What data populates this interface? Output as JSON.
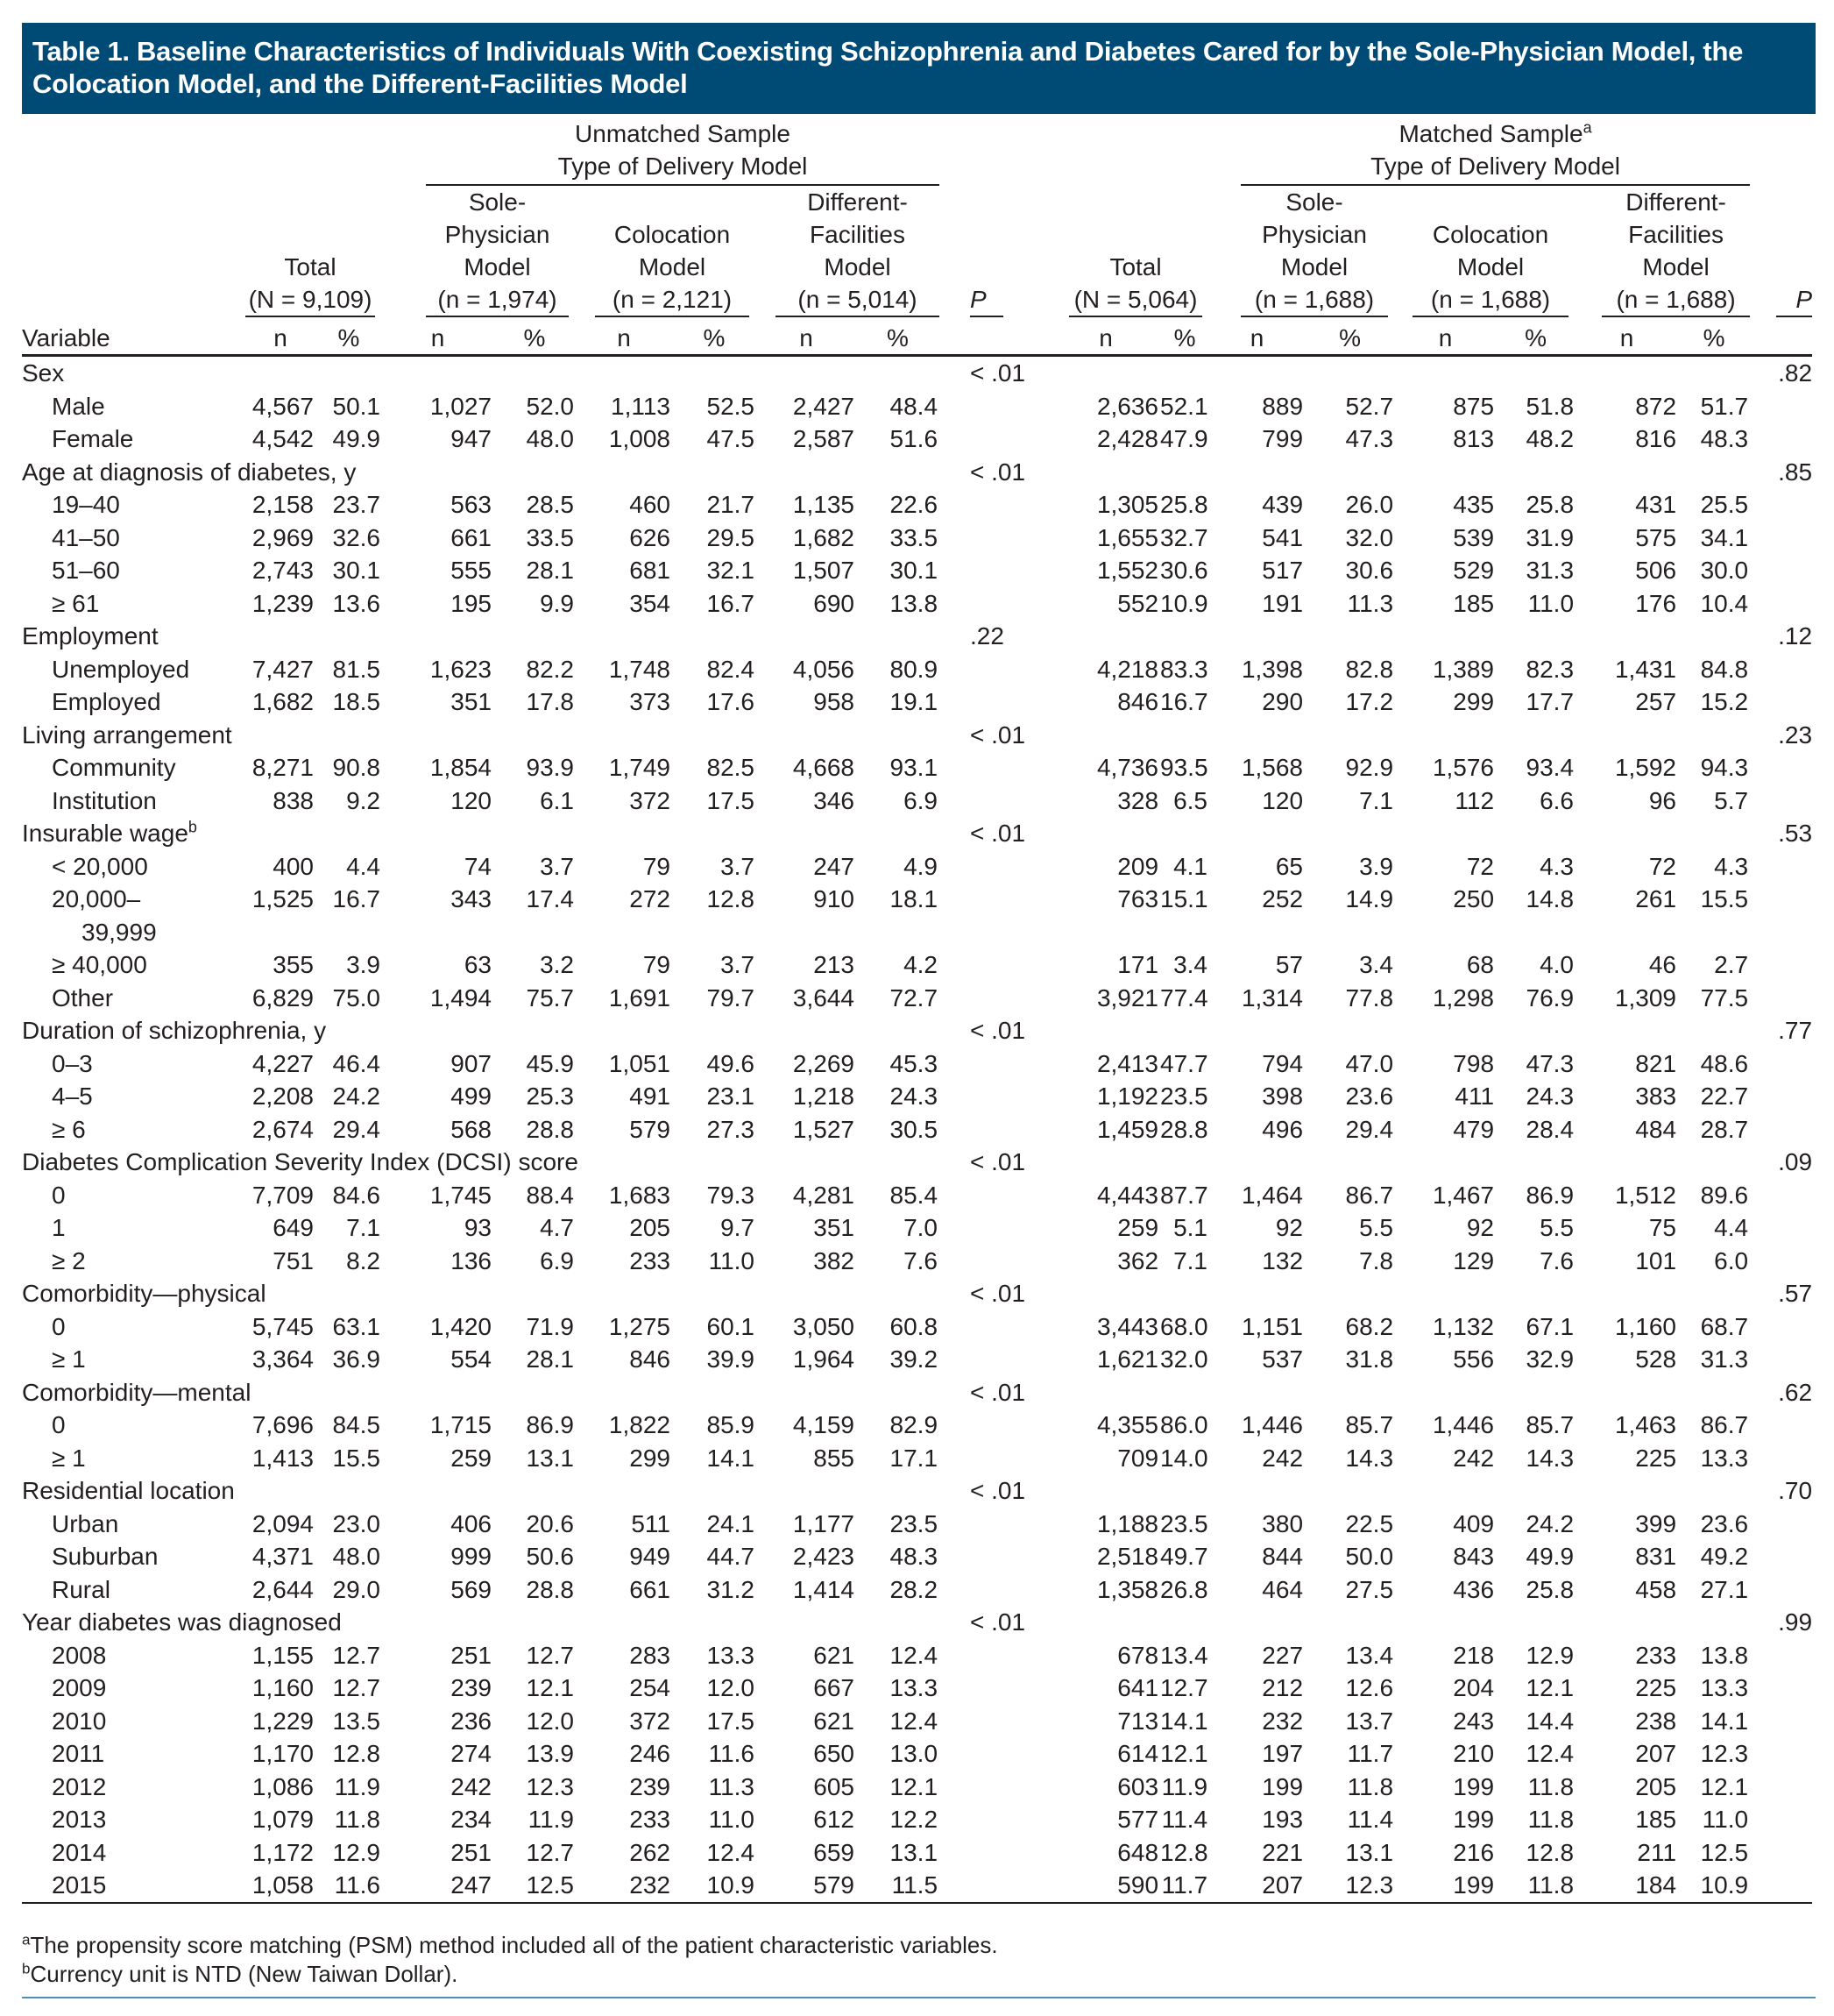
{
  "title": "Table 1. Baseline Characteristics of Individuals With Coexisting Schizophrenia and Diabetes Cared for by the Sole-Physician Model, the Colocation Model, and the Different-Facilities Model",
  "header": {
    "unmatched_line1": "Unmatched Sample",
    "matched_line1": "Matched Sample",
    "matched_sup": "a",
    "type_line": "Type of Delivery Model",
    "total": "Total",
    "unmatched_total_n": "(N = 9,109)",
    "matched_total_n": "(N = 5,064)",
    "sole_l1": "Sole-",
    "sole_l2": "Physician",
    "model": "Model",
    "colocation": "Colocation",
    "diff_l1": "Different-",
    "diff_l2": "Facilities",
    "unmatched_sole_n": "(n = 1,974)",
    "unmatched_colo_n": "(n = 2,121)",
    "unmatched_diff_n": "(n = 5,014)",
    "matched_sole_n": "(n = 1,688)",
    "matched_colo_n": "(n = 1,688)",
    "matched_diff_n": "(n = 1,688)",
    "p": "P",
    "variable": "Variable",
    "n": "n",
    "pct": "%"
  },
  "rows": [
    {
      "label": "Sex",
      "p1": "< .01",
      "p2": ".82"
    },
    {
      "label": "Male",
      "v": [
        "4,567",
        "50.1",
        "1,027",
        "52.0",
        "1,113",
        "52.5",
        "2,427",
        "48.4",
        "2,636",
        "52.1",
        "889",
        "52.7",
        "875",
        "51.8",
        "872",
        "51.7"
      ]
    },
    {
      "label": "Female",
      "v": [
        "4,542",
        "49.9",
        "947",
        "48.0",
        "1,008",
        "47.5",
        "2,587",
        "51.6",
        "2,428",
        "47.9",
        "799",
        "47.3",
        "813",
        "48.2",
        "816",
        "48.3"
      ]
    },
    {
      "label": "Age at diagnosis of diabetes, y",
      "p1": "< .01",
      "p2": ".85"
    },
    {
      "label": "19–40",
      "v": [
        "2,158",
        "23.7",
        "563",
        "28.5",
        "460",
        "21.7",
        "1,135",
        "22.6",
        "1,305",
        "25.8",
        "439",
        "26.0",
        "435",
        "25.8",
        "431",
        "25.5"
      ]
    },
    {
      "label": "41–50",
      "v": [
        "2,969",
        "32.6",
        "661",
        "33.5",
        "626",
        "29.5",
        "1,682",
        "33.5",
        "1,655",
        "32.7",
        "541",
        "32.0",
        "539",
        "31.9",
        "575",
        "34.1"
      ]
    },
    {
      "label": "51–60",
      "v": [
        "2,743",
        "30.1",
        "555",
        "28.1",
        "681",
        "32.1",
        "1,507",
        "30.1",
        "1,552",
        "30.6",
        "517",
        "30.6",
        "529",
        "31.3",
        "506",
        "30.0"
      ]
    },
    {
      "label": "≥ 61",
      "v": [
        "1,239",
        "13.6",
        "195",
        "9.9",
        "354",
        "16.7",
        "690",
        "13.8",
        "552",
        "10.9",
        "191",
        "11.3",
        "185",
        "11.0",
        "176",
        "10.4"
      ]
    },
    {
      "label": "Employment",
      "p1": ".22",
      "p2": ".12"
    },
    {
      "label": "Unemployed",
      "v": [
        "7,427",
        "81.5",
        "1,623",
        "82.2",
        "1,748",
        "82.4",
        "4,056",
        "80.9",
        "4,218",
        "83.3",
        "1,398",
        "82.8",
        "1,389",
        "82.3",
        "1,431",
        "84.8"
      ]
    },
    {
      "label": "Employed",
      "v": [
        "1,682",
        "18.5",
        "351",
        "17.8",
        "373",
        "17.6",
        "958",
        "19.1",
        "846",
        "16.7",
        "290",
        "17.2",
        "299",
        "17.7",
        "257",
        "15.2"
      ]
    },
    {
      "label": "Living arrangement",
      "p1": "< .01",
      "p2": ".23"
    },
    {
      "label": "Community",
      "v": [
        "8,271",
        "90.8",
        "1,854",
        "93.9",
        "1,749",
        "82.5",
        "4,668",
        "93.1",
        "4,736",
        "93.5",
        "1,568",
        "92.9",
        "1,576",
        "93.4",
        "1,592",
        "94.3"
      ]
    },
    {
      "label": "Institution",
      "v": [
        "838",
        "9.2",
        "120",
        "6.1",
        "372",
        "17.5",
        "346",
        "6.9",
        "328",
        "6.5",
        "120",
        "7.1",
        "112",
        "6.6",
        "96",
        "5.7"
      ]
    },
    {
      "label": "Insurable wage",
      "sup": "b",
      "p1": "< .01",
      "p2": ".53"
    },
    {
      "label": "< 20,000",
      "v": [
        "400",
        "4.4",
        "74",
        "3.7",
        "79",
        "3.7",
        "247",
        "4.9",
        "209",
        "4.1",
        "65",
        "3.9",
        "72",
        "4.3",
        "72",
        "4.3"
      ]
    },
    {
      "label": "20,000–",
      "label2": "39,999",
      "v": [
        "1,525",
        "16.7",
        "343",
        "17.4",
        "272",
        "12.8",
        "910",
        "18.1",
        "763",
        "15.1",
        "252",
        "14.9",
        "250",
        "14.8",
        "261",
        "15.5"
      ]
    },
    {
      "label": "≥ 40,000",
      "v": [
        "355",
        "3.9",
        "63",
        "3.2",
        "79",
        "3.7",
        "213",
        "4.2",
        "171",
        "3.4",
        "57",
        "3.4",
        "68",
        "4.0",
        "46",
        "2.7"
      ]
    },
    {
      "label": "Other",
      "v": [
        "6,829",
        "75.0",
        "1,494",
        "75.7",
        "1,691",
        "79.7",
        "3,644",
        "72.7",
        "3,921",
        "77.4",
        "1,314",
        "77.8",
        "1,298",
        "76.9",
        "1,309",
        "77.5"
      ]
    },
    {
      "label": "Duration of schizophrenia, y",
      "p1": "< .01",
      "p2": ".77"
    },
    {
      "label": "0–3",
      "v": [
        "4,227",
        "46.4",
        "907",
        "45.9",
        "1,051",
        "49.6",
        "2,269",
        "45.3",
        "2,413",
        "47.7",
        "794",
        "47.0",
        "798",
        "47.3",
        "821",
        "48.6"
      ]
    },
    {
      "label": "4–5",
      "v": [
        "2,208",
        "24.2",
        "499",
        "25.3",
        "491",
        "23.1",
        "1,218",
        "24.3",
        "1,192",
        "23.5",
        "398",
        "23.6",
        "411",
        "24.3",
        "383",
        "22.7"
      ]
    },
    {
      "label": "≥ 6",
      "v": [
        "2,674",
        "29.4",
        "568",
        "28.8",
        "579",
        "27.3",
        "1,527",
        "30.5",
        "1,459",
        "28.8",
        "496",
        "29.4",
        "479",
        "28.4",
        "484",
        "28.7"
      ]
    },
    {
      "label": "Diabetes Complication Severity Index (DCSI) score",
      "p1": "< .01",
      "p2": ".09"
    },
    {
      "label": "0",
      "v": [
        "7,709",
        "84.6",
        "1,745",
        "88.4",
        "1,683",
        "79.3",
        "4,281",
        "85.4",
        "4,443",
        "87.7",
        "1,464",
        "86.7",
        "1,467",
        "86.9",
        "1,512",
        "89.6"
      ]
    },
    {
      "label": "1",
      "v": [
        "649",
        "7.1",
        "93",
        "4.7",
        "205",
        "9.7",
        "351",
        "7.0",
        "259",
        "5.1",
        "92",
        "5.5",
        "92",
        "5.5",
        "75",
        "4.4"
      ]
    },
    {
      "label": "≥ 2",
      "v": [
        "751",
        "8.2",
        "136",
        "6.9",
        "233",
        "11.0",
        "382",
        "7.6",
        "362",
        "7.1",
        "132",
        "7.8",
        "129",
        "7.6",
        "101",
        "6.0"
      ]
    },
    {
      "label": "Comorbidity—physical",
      "p1": "< .01",
      "p2": ".57"
    },
    {
      "label": "0",
      "v": [
        "5,745",
        "63.1",
        "1,420",
        "71.9",
        "1,275",
        "60.1",
        "3,050",
        "60.8",
        "3,443",
        "68.0",
        "1,151",
        "68.2",
        "1,132",
        "67.1",
        "1,160",
        "68.7"
      ]
    },
    {
      "label": "≥ 1",
      "v": [
        "3,364",
        "36.9",
        "554",
        "28.1",
        "846",
        "39.9",
        "1,964",
        "39.2",
        "1,621",
        "32.0",
        "537",
        "31.8",
        "556",
        "32.9",
        "528",
        "31.3"
      ]
    },
    {
      "label": "Comorbidity—mental",
      "p1": "< .01",
      "p2": ".62"
    },
    {
      "label": "0",
      "v": [
        "7,696",
        "84.5",
        "1,715",
        "86.9",
        "1,822",
        "85.9",
        "4,159",
        "82.9",
        "4,355",
        "86.0",
        "1,446",
        "85.7",
        "1,446",
        "85.7",
        "1,463",
        "86.7"
      ]
    },
    {
      "label": "≥ 1",
      "v": [
        "1,413",
        "15.5",
        "259",
        "13.1",
        "299",
        "14.1",
        "855",
        "17.1",
        "709",
        "14.0",
        "242",
        "14.3",
        "242",
        "14.3",
        "225",
        "13.3"
      ]
    },
    {
      "label": "Residential location",
      "p1": "< .01",
      "p2": ".70"
    },
    {
      "label": "Urban",
      "v": [
        "2,094",
        "23.0",
        "406",
        "20.6",
        "511",
        "24.1",
        "1,177",
        "23.5",
        "1,188",
        "23.5",
        "380",
        "22.5",
        "409",
        "24.2",
        "399",
        "23.6"
      ]
    },
    {
      "label": "Suburban",
      "v": [
        "4,371",
        "48.0",
        "999",
        "50.6",
        "949",
        "44.7",
        "2,423",
        "48.3",
        "2,518",
        "49.7",
        "844",
        "50.0",
        "843",
        "49.9",
        "831",
        "49.2"
      ]
    },
    {
      "label": "Rural",
      "v": [
        "2,644",
        "29.0",
        "569",
        "28.8",
        "661",
        "31.2",
        "1,414",
        "28.2",
        "1,358",
        "26.8",
        "464",
        "27.5",
        "436",
        "25.8",
        "458",
        "27.1"
      ]
    },
    {
      "label": "Year diabetes was diagnosed",
      "p1": "< .01",
      "p2": ".99"
    },
    {
      "label": "2008",
      "v": [
        "1,155",
        "12.7",
        "251",
        "12.7",
        "283",
        "13.3",
        "621",
        "12.4",
        "678",
        "13.4",
        "227",
        "13.4",
        "218",
        "12.9",
        "233",
        "13.8"
      ]
    },
    {
      "label": "2009",
      "v": [
        "1,160",
        "12.7",
        "239",
        "12.1",
        "254",
        "12.0",
        "667",
        "13.3",
        "641",
        "12.7",
        "212",
        "12.6",
        "204",
        "12.1",
        "225",
        "13.3"
      ]
    },
    {
      "label": "2010",
      "v": [
        "1,229",
        "13.5",
        "236",
        "12.0",
        "372",
        "17.5",
        "621",
        "12.4",
        "713",
        "14.1",
        "232",
        "13.7",
        "243",
        "14.4",
        "238",
        "14.1"
      ]
    },
    {
      "label": "2011",
      "v": [
        "1,170",
        "12.8",
        "274",
        "13.9",
        "246",
        "11.6",
        "650",
        "13.0",
        "614",
        "12.1",
        "197",
        "11.7",
        "210",
        "12.4",
        "207",
        "12.3"
      ]
    },
    {
      "label": "2012",
      "v": [
        "1,086",
        "11.9",
        "242",
        "12.3",
        "239",
        "11.3",
        "605",
        "12.1",
        "603",
        "11.9",
        "199",
        "11.8",
        "199",
        "11.8",
        "205",
        "12.1"
      ]
    },
    {
      "label": "2013",
      "v": [
        "1,079",
        "11.8",
        "234",
        "11.9",
        "233",
        "11.0",
        "612",
        "12.2",
        "577",
        "11.4",
        "193",
        "11.4",
        "199",
        "11.8",
        "185",
        "11.0"
      ]
    },
    {
      "label": "2014",
      "v": [
        "1,172",
        "12.9",
        "251",
        "12.7",
        "262",
        "12.4",
        "659",
        "13.1",
        "648",
        "12.8",
        "221",
        "13.1",
        "216",
        "12.8",
        "211",
        "12.5"
      ]
    },
    {
      "label": "2015",
      "v": [
        "1,058",
        "11.6",
        "247",
        "12.5",
        "232",
        "10.9",
        "579",
        "11.5",
        "590",
        "11.7",
        "207",
        "12.3",
        "199",
        "11.8",
        "184",
        "10.9"
      ]
    }
  ],
  "footnotes": [
    {
      "mark": "a",
      "text": "The propensity score matching (PSM) method included all of the patient characteristic variables."
    },
    {
      "mark": "b",
      "text": "Currency unit is NTD (New Taiwan Dollar)."
    }
  ]
}
